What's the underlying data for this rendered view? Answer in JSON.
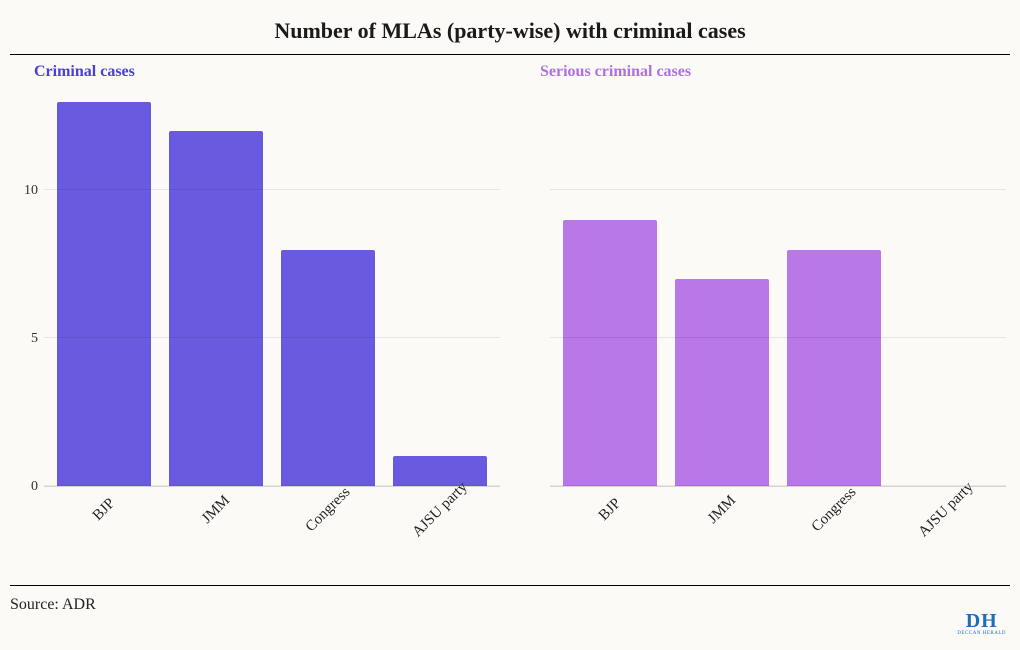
{
  "title": "Number of MLAs (party-wise) with criminal cases",
  "source": "Source: ADR",
  "logo": {
    "main": "DH",
    "sub": "DECCAN HERALD",
    "color": "#1e6fb8"
  },
  "background_color": "#fbfaf7",
  "categories": [
    "BJP",
    "JMM",
    "Congress",
    "AJSU party"
  ],
  "y_axis": {
    "ylim": [
      0,
      13.5
    ],
    "ticks": [
      0,
      5,
      10
    ],
    "grid_color": "rgba(0,0,0,0.08)"
  },
  "panels": [
    {
      "title": "Criminal cases",
      "title_color": "#4a3fd6",
      "bar_color": "#6a5ae0",
      "values": [
        13,
        12,
        8,
        1
      ]
    },
    {
      "title": "Serious criminal cases",
      "title_color": "#b06fe0",
      "bar_color": "#b878e8",
      "values": [
        9,
        7,
        8,
        0
      ]
    }
  ],
  "style": {
    "title_fontsize": 22,
    "panel_title_fontsize": 16,
    "axis_fontsize": 14,
    "bar_width_pct": 21,
    "font_family": "Georgia, serif"
  }
}
